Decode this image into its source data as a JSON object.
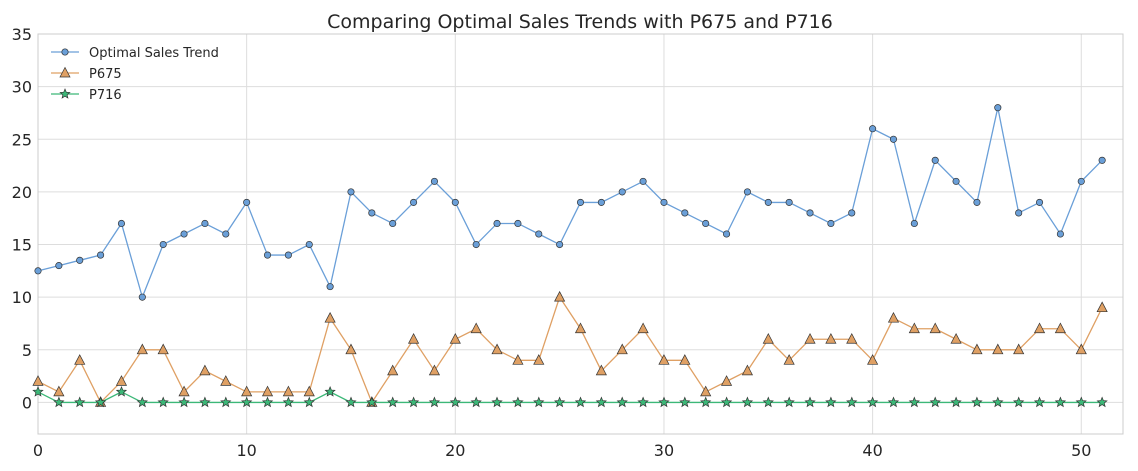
{
  "chart_data": {
    "type": "line",
    "title": "Comparing Optimal Sales Trends with P675 and P716",
    "xlabel": "",
    "ylabel": "",
    "xlim": [
      0,
      52
    ],
    "ylim": [
      -3,
      35
    ],
    "grid": true,
    "legend_placement": "top-left",
    "xticks": [
      0,
      10,
      20,
      30,
      40,
      50
    ],
    "yticks": [
      0,
      5,
      10,
      15,
      20,
      25,
      30,
      35
    ],
    "x": [
      0,
      1,
      2,
      3,
      4,
      5,
      6,
      7,
      8,
      9,
      10,
      11,
      12,
      13,
      14,
      15,
      16,
      17,
      18,
      19,
      20,
      21,
      22,
      23,
      24,
      25,
      26,
      27,
      28,
      29,
      30,
      31,
      32,
      33,
      34,
      35,
      36,
      37,
      38,
      39,
      40,
      41,
      42,
      43,
      44,
      45,
      46,
      47,
      48,
      49,
      50,
      51
    ],
    "series": [
      {
        "name": "Optimal Sales Trend",
        "color": "#6a9fd8",
        "marker": "circle",
        "values": [
          12.5,
          13,
          13.5,
          14,
          17,
          10,
          15,
          16,
          17,
          16,
          19,
          14,
          14,
          15,
          11,
          20,
          18,
          17,
          19,
          21,
          19,
          15,
          17,
          17,
          16,
          15,
          19,
          19,
          20,
          21,
          19,
          18,
          17,
          16,
          20,
          19,
          19,
          18,
          17,
          18,
          26,
          25,
          17,
          23,
          21,
          19,
          28,
          18,
          19,
          16,
          21,
          23
        ]
      },
      {
        "name": "P675",
        "color": "#dfa064",
        "marker": "triangle",
        "values": [
          2,
          1,
          4,
          0,
          2,
          5,
          5,
          1,
          3,
          2,
          1,
          1,
          1,
          1,
          8,
          5,
          0,
          3,
          6,
          3,
          6,
          7,
          5,
          4,
          4,
          10,
          7,
          3,
          5,
          7,
          4,
          4,
          1,
          2,
          3,
          6,
          4,
          6,
          6,
          6,
          4,
          8,
          7,
          7,
          6,
          5,
          5,
          5,
          7,
          7,
          5,
          9
        ]
      },
      {
        "name": "P716",
        "color": "#3cb878",
        "marker": "star",
        "values": [
          1,
          0,
          0,
          0,
          1,
          0,
          0,
          0,
          0,
          0,
          0,
          0,
          0,
          0,
          1,
          0,
          0,
          0,
          0,
          0,
          0,
          0,
          0,
          0,
          0,
          0,
          0,
          0,
          0,
          0,
          0,
          0,
          0,
          0,
          0,
          0,
          0,
          0,
          0,
          0,
          0,
          0,
          0,
          0,
          0,
          0,
          0,
          0,
          0,
          0,
          0,
          0
        ]
      }
    ]
  }
}
